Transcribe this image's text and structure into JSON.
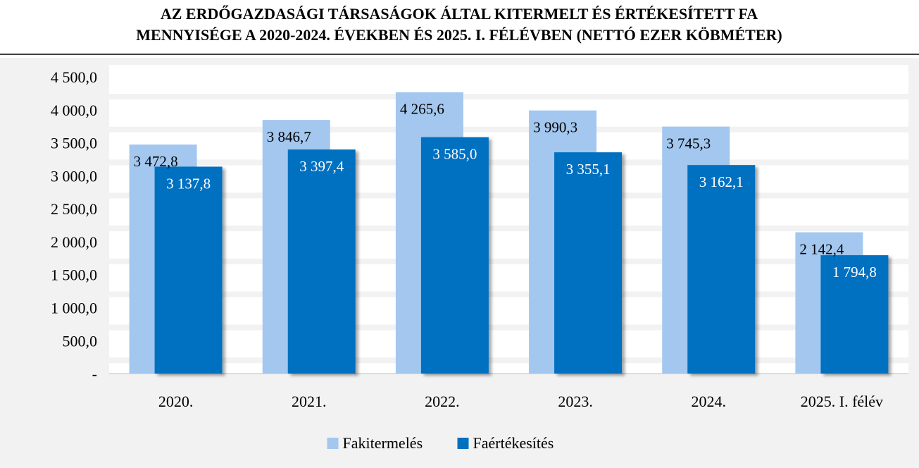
{
  "chart_data": {
    "type": "bar",
    "title": [
      "AZ ERDŐGAZDASÁGI TÁRSASÁGOK ÁLTAL KITERMELT ÉS ÉRTÉKESÍTETT FA",
      "MENNYISÉGE A 2020-2024. ÉVEKBEN ÉS 2025. I. FÉLÉVBEN (NETTÓ EZER KÖBMÉTER)"
    ],
    "categories": [
      "2020.",
      "2021.",
      "2022.",
      "2023.",
      "2024.",
      "2025. I. félév"
    ],
    "series": [
      {
        "name": "Fakitermelés",
        "color": "#a3c7ee",
        "values": [
          3472.8,
          3846.7,
          4265.6,
          3990.3,
          3745.3,
          2142.4
        ],
        "value_labels": [
          "3 472,8",
          "3 846,7",
          "4 265,6",
          "3 990,3",
          "3 745,3",
          "2 142,4"
        ]
      },
      {
        "name": "Faértékesítés",
        "color": "#0070c0",
        "values": [
          3137.8,
          3397.4,
          3585.0,
          3355.1,
          3162.1,
          1794.8
        ],
        "value_labels": [
          "3 137,8",
          "3 397,4",
          "3 585,0",
          "3 355,1",
          "3 162,1",
          "1 794,8"
        ]
      }
    ],
    "ylim": [
      0,
      4500
    ],
    "yticks": [
      {
        "value": 0,
        "label": "-"
      },
      {
        "value": 500,
        "label": "500,0"
      },
      {
        "value": 1000,
        "label": "1 000,0"
      },
      {
        "value": 1500,
        "label": "1 500,0"
      },
      {
        "value": 2000,
        "label": "2 000,0"
      },
      {
        "value": 2500,
        "label": "2 500,0"
      },
      {
        "value": 3000,
        "label": "3 000,0"
      },
      {
        "value": 3500,
        "label": "3 500,0"
      },
      {
        "value": 4000,
        "label": "4 000,0"
      },
      {
        "value": 4500,
        "label": "4 500,0"
      }
    ],
    "grid": true,
    "legend": "bottom"
  }
}
